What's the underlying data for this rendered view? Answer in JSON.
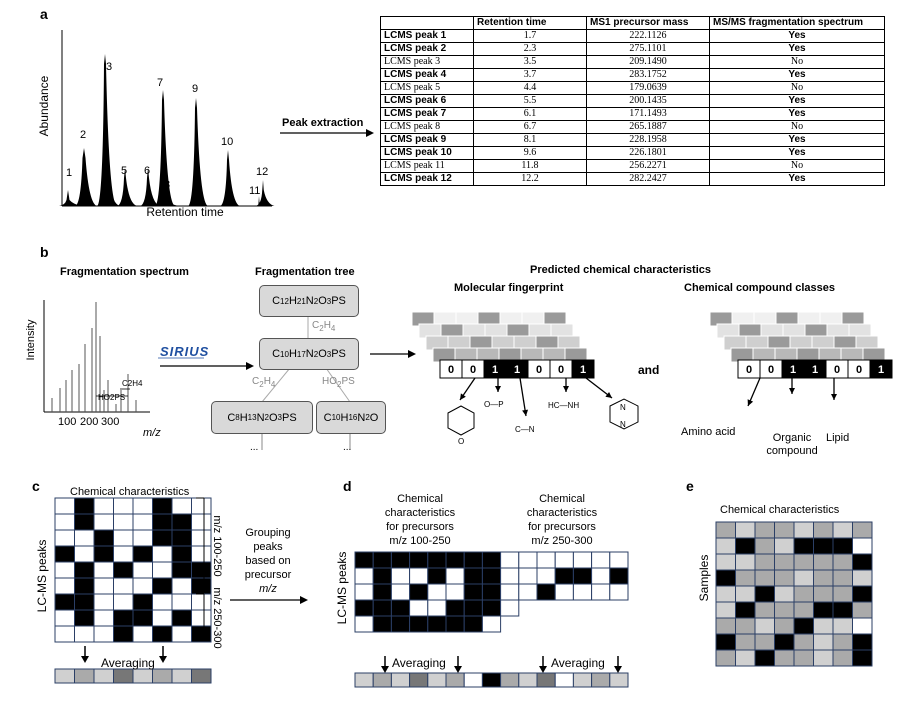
{
  "panels": {
    "a": "a",
    "b": "b",
    "c": "c",
    "d": "d",
    "e": "e"
  },
  "panel_a": {
    "y_axis_label": "Abundance",
    "x_axis_label": "Retention time",
    "peak_numbers": [
      "1",
      "2",
      "3",
      "4",
      "5",
      "6",
      "7",
      "8",
      "9",
      "10",
      "11",
      "12"
    ],
    "arrow_label": "Peak extraction",
    "table": {
      "headers": [
        "",
        "Retention time",
        "MS1 precursor mass",
        "MS/MS fragmentation spectrum"
      ],
      "rows": [
        {
          "name": "LCMS peak 1",
          "rt": "1.7",
          "mass": "222.1126",
          "msms": "Yes",
          "bold": true
        },
        {
          "name": "LCMS peak 2",
          "rt": "2.3",
          "mass": "275.1101",
          "msms": "Yes",
          "bold": true
        },
        {
          "name": "LCMS peak 3",
          "rt": "3.5",
          "mass": "209.1490",
          "msms": "No",
          "bold": false
        },
        {
          "name": "LCMS peak 4",
          "rt": "3.7",
          "mass": "283.1752",
          "msms": "Yes",
          "bold": true
        },
        {
          "name": "LCMS peak 5",
          "rt": "4.4",
          "mass": "179.0639",
          "msms": "No",
          "bold": false
        },
        {
          "name": "LCMS peak 6",
          "rt": "5.5",
          "mass": "200.1435",
          "msms": "Yes",
          "bold": true
        },
        {
          "name": "LCMS peak 7",
          "rt": "6.1",
          "mass": "171.1493",
          "msms": "Yes",
          "bold": true
        },
        {
          "name": "LCMS peak 8",
          "rt": "6.7",
          "mass": "265.1887",
          "msms": "No",
          "bold": false
        },
        {
          "name": "LCMS peak 9",
          "rt": "8.1",
          "mass": "228.1958",
          "msms": "Yes",
          "bold": true
        },
        {
          "name": "LCMS peak 10",
          "rt": "9.6",
          "mass": "226.1801",
          "msms": "Yes",
          "bold": true
        },
        {
          "name": "LCMS peak 11",
          "rt": "11.8",
          "mass": "256.2271",
          "msms": "No",
          "bold": false
        },
        {
          "name": "LCMS peak 12",
          "rt": "12.2",
          "mass": "282.2427",
          "msms": "Yes",
          "bold": true
        }
      ]
    }
  },
  "panel_b": {
    "spectrum_title": "Fragmentation spectrum",
    "intensity_label": "Intensity",
    "mz_label": "m/z",
    "tick_labels": [
      "100",
      "200",
      "300"
    ],
    "loss_labels": [
      "C2H4",
      "HO2PS"
    ],
    "sirius_logo": "SIRIUS",
    "tree_title": "Fragmentation tree",
    "tree_nodes": {
      "root": {
        "base": "C",
        "parts": [
          [
            "12",
            ""
          ],
          [
            "H",
            "21"
          ],
          [
            "N",
            "2"
          ],
          [
            "O",
            "3"
          ],
          [
            "PS",
            ""
          ]
        ]
      },
      "mid": {
        "parts": [
          [
            "C",
            "10"
          ],
          [
            "H",
            "17"
          ],
          [
            "N",
            "2"
          ],
          [
            "O",
            "3"
          ],
          [
            "PS",
            ""
          ]
        ]
      },
      "left": {
        "parts": [
          [
            "C",
            "8"
          ],
          [
            "H",
            "13"
          ],
          [
            "N",
            "2"
          ],
          [
            "O",
            "3"
          ],
          [
            "PS",
            ""
          ]
        ]
      },
      "right": {
        "parts": [
          [
            "C",
            "10"
          ],
          [
            "H",
            "16"
          ],
          [
            "N",
            "2"
          ],
          [
            "O",
            ""
          ]
        ]
      }
    },
    "edge_labels": {
      "c2h4_top": [
        "C",
        "2",
        "H",
        "4"
      ],
      "c2h4_left": [
        "C",
        "2",
        "H",
        "4"
      ],
      "ho2ps": [
        "HO",
        "2",
        "PS",
        ""
      ]
    },
    "ellipsis": "...",
    "predicted_title": "Predicted chemical characteristics",
    "fingerprint_title": "Molecular fingerprint",
    "fingerprint_bits": [
      "0",
      "0",
      "1",
      "1",
      "0",
      "0",
      "1"
    ],
    "fragment_labels": [
      "O—P",
      "C—N",
      "HC—NH"
    ],
    "and_label": "and",
    "classes_title": "Chemical compound classes",
    "class_bits": [
      "0",
      "0",
      "1",
      "1",
      "0",
      "0",
      "1"
    ],
    "class_labels": [
      "Amino acid",
      "Organic compound",
      "Lipid"
    ]
  },
  "panel_c": {
    "title": "Chemical characteristics",
    "y_label": "LC-MS peaks",
    "group_labels": [
      "m/z 100-250",
      "m/z 250-300"
    ],
    "averaging": "Averaging",
    "grouping_text": [
      "Grouping",
      "peaks",
      "based on",
      "precursor",
      "m/z"
    ]
  },
  "panel_d": {
    "title_left": [
      "Chemical",
      "characteristics",
      "for precursors",
      "m/z 100-250"
    ],
    "title_right": [
      "Chemical",
      "characteristics",
      "for precursors",
      "m/z 250-300"
    ],
    "y_label": "LC-MS peaks",
    "averaging": [
      "Averaging",
      "Averaging"
    ]
  },
  "panel_e": {
    "title": "Chemical characteristics",
    "y_label": "Samples"
  },
  "colors": {
    "black": "#000000",
    "dark_gray": "#777777",
    "mid_gray": "#aaaaaa",
    "light_gray": "#d0d0d0",
    "node_fill": "#d9d9d9"
  }
}
